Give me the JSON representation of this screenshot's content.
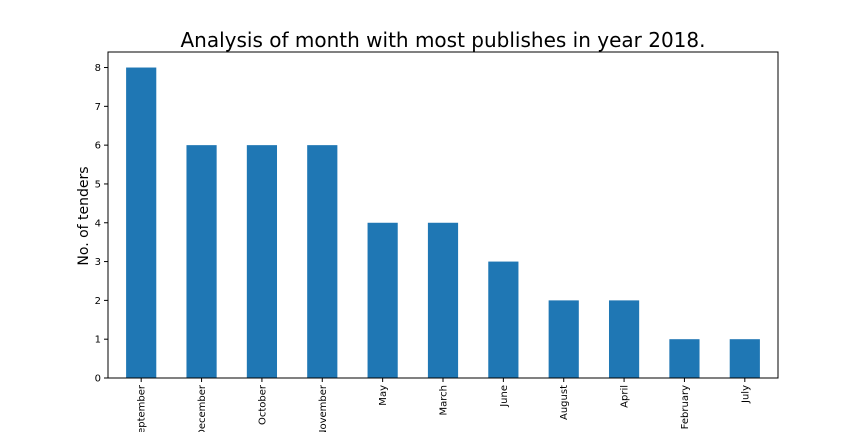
{
  "chart_data": {
    "type": "bar",
    "title": "Analysis of month with most publishes in year 2018.",
    "xlabel": "",
    "ylabel": "No. of tenders",
    "categories": [
      "September",
      "December",
      "October",
      "November",
      "May",
      "March",
      "June",
      "August",
      "April",
      "February",
      "July"
    ],
    "values": [
      8,
      6,
      6,
      6,
      4,
      4,
      3,
      2,
      2,
      1,
      1
    ],
    "ylim": [
      0,
      8.4
    ],
    "yticks": [
      0,
      1,
      2,
      3,
      4,
      5,
      6,
      7,
      8
    ],
    "bar_color": "#1f77b4",
    "grid": false,
    "legend": "none"
  }
}
